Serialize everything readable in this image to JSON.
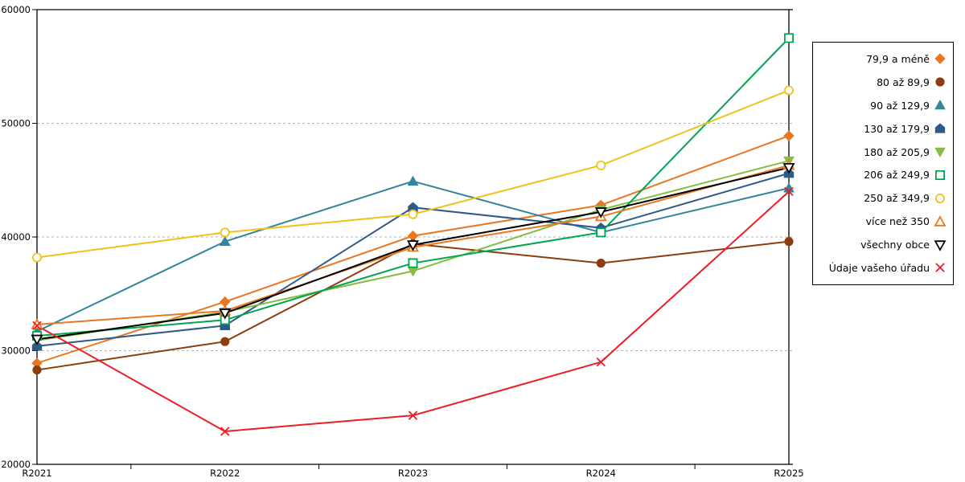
{
  "chart_data": {
    "type": "line",
    "title": "",
    "xlabel": "",
    "ylabel": "",
    "categories": [
      "R2021",
      "R2022",
      "R2023",
      "R2024",
      "R2025"
    ],
    "ylim": [
      20000,
      60000
    ],
    "yticks": [
      20000,
      30000,
      40000,
      50000,
      60000
    ],
    "grid": "horizontal-dashed",
    "legend_position": "right",
    "series": [
      {
        "name": "79,9 a méně",
        "color": "#E87722",
        "marker": "diamond",
        "fill": "solid",
        "values": [
          28900,
          34300,
          40100,
          42800,
          48900
        ]
      },
      {
        "name": "80 až 89,9",
        "color": "#8C3D10",
        "marker": "circle",
        "fill": "solid",
        "values": [
          28300,
          30800,
          39400,
          37700,
          39600
        ]
      },
      {
        "name": "90 až 129,9",
        "color": "#31859C",
        "marker": "triangle-up",
        "fill": "solid",
        "values": [
          31700,
          39600,
          44900,
          40400,
          44300
        ]
      },
      {
        "name": "130 až 179,9",
        "color": "#2E5A87",
        "marker": "pentagon",
        "fill": "solid",
        "values": [
          30400,
          32200,
          42600,
          40800,
          45600
        ]
      },
      {
        "name": "180 až 205,9",
        "color": "#84BD41",
        "marker": "triangle-down",
        "fill": "solid",
        "values": [
          30900,
          33400,
          37000,
          42400,
          46700
        ]
      },
      {
        "name": "206 až 249,9",
        "color": "#00A550",
        "marker": "square",
        "fill": "open",
        "values": [
          31300,
          32700,
          37700,
          40400,
          57500
        ]
      },
      {
        "name": "250 až 349,9",
        "color": "#F0C219",
        "marker": "circle",
        "fill": "open",
        "values": [
          38200,
          40400,
          42000,
          46300,
          52900
        ]
      },
      {
        "name": "více než 350",
        "color": "#E87722",
        "marker": "triangle-up",
        "fill": "open",
        "values": [
          32300,
          33500,
          39100,
          41800,
          46300
        ]
      },
      {
        "name": "všechny obce",
        "color": "#000000",
        "marker": "triangle-down",
        "fill": "open",
        "values": [
          31000,
          33300,
          39300,
          42200,
          46100
        ]
      },
      {
        "name": "Údaje vašeho úřadu",
        "color": "#EE1C25",
        "marker": "x",
        "fill": "open",
        "values": [
          32200,
          22900,
          24300,
          29000,
          44000
        ]
      }
    ]
  }
}
